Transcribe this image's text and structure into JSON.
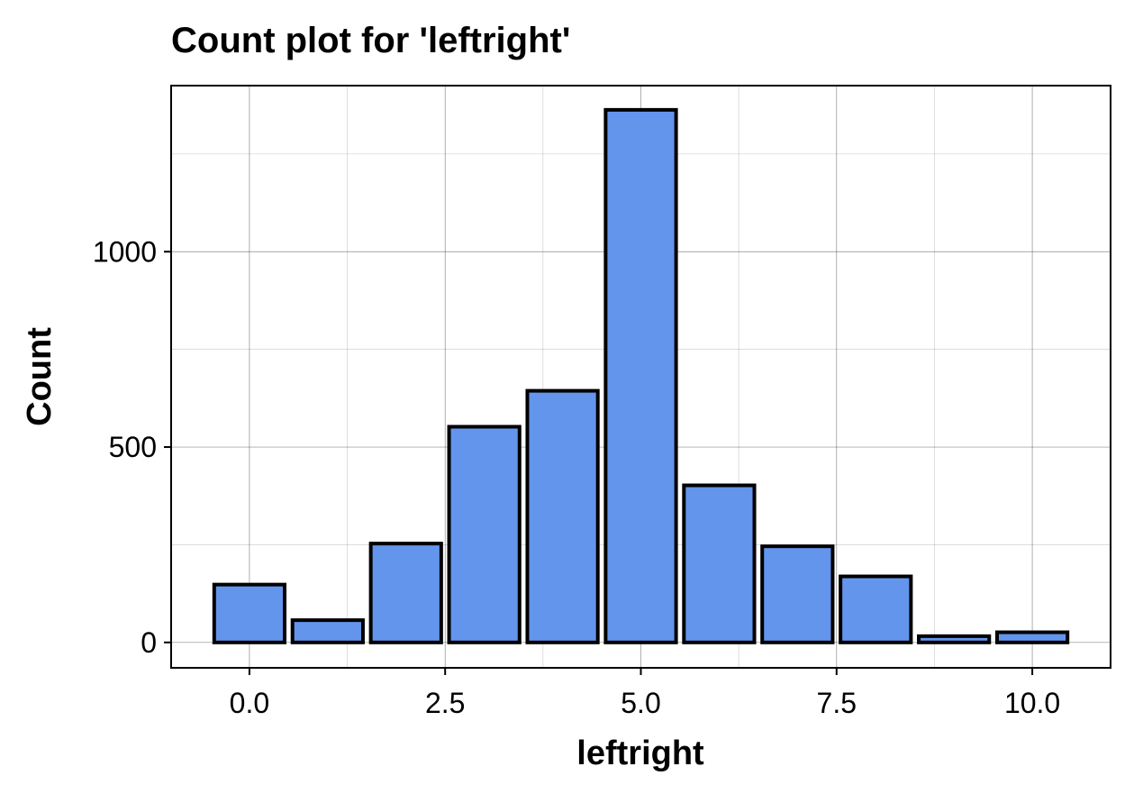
{
  "chart_data": {
    "type": "bar",
    "title": "Count plot for 'leftright'",
    "xlabel": "leftright",
    "ylabel": "Count",
    "x": [
      0,
      1,
      2,
      3,
      4,
      5,
      6,
      7,
      8,
      9,
      10
    ],
    "values": [
      148,
      57,
      253,
      552,
      644,
      1363,
      402,
      246,
      169,
      16,
      26
    ],
    "xlim": [
      -1,
      11
    ],
    "ylim": [
      -65,
      1425
    ],
    "xticks": [
      0,
      2.5,
      5,
      7.5,
      10
    ],
    "xtick_labels": [
      "0.0",
      "2.5",
      "5.0",
      "7.5",
      "10.0"
    ],
    "yticks": [
      0,
      500,
      1000
    ],
    "ytick_labels": [
      "0",
      "500",
      "1000"
    ],
    "bar_width": 0.9,
    "bar_color": "#6495ED",
    "edge_color": "#000000",
    "grid": true
  }
}
